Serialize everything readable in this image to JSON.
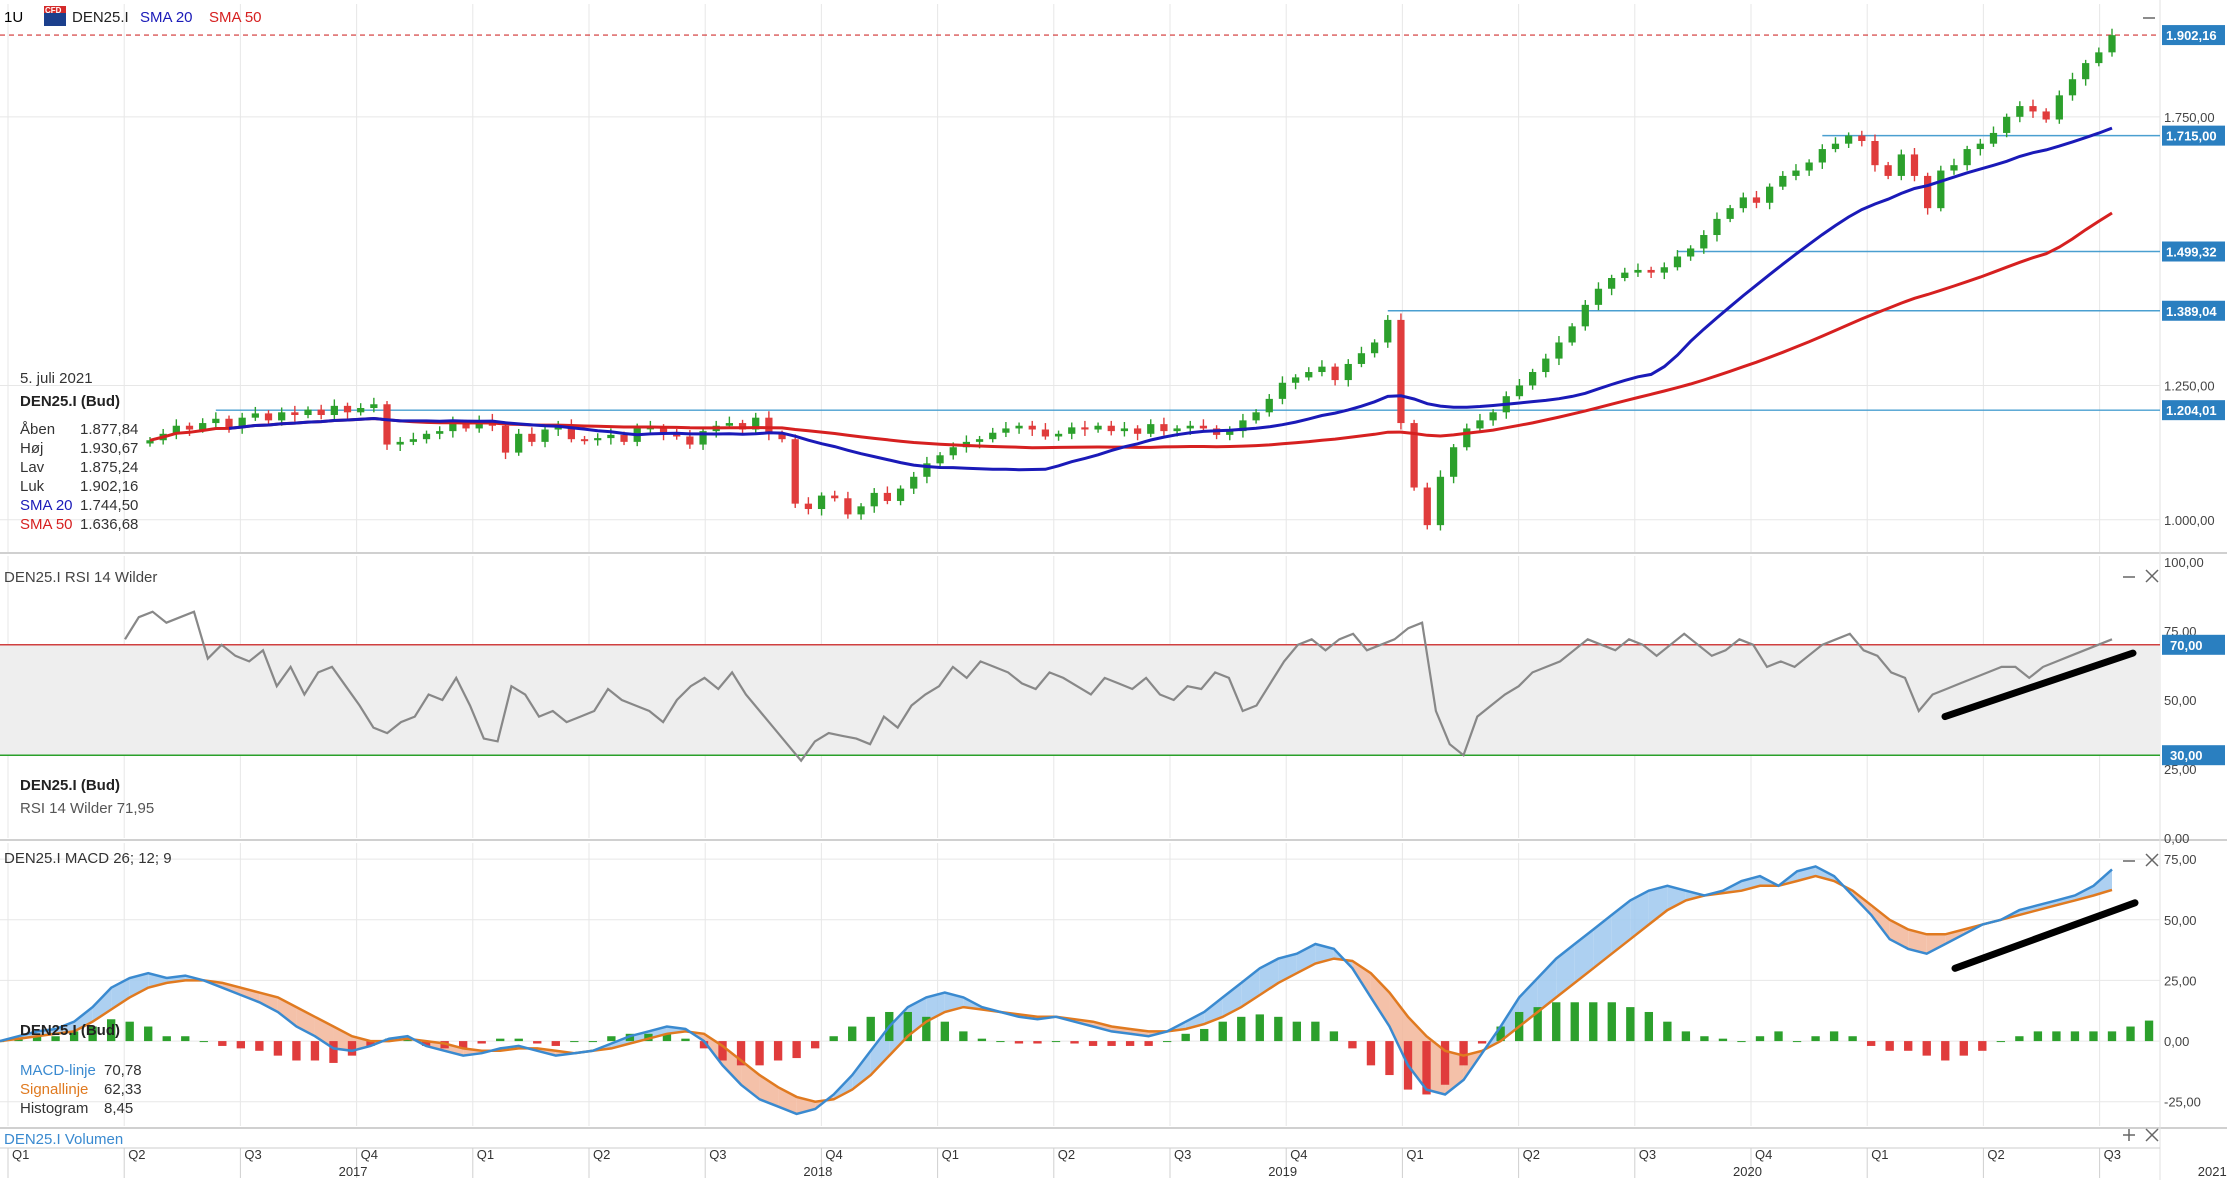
{
  "header": {
    "timeframe": "1U",
    "symbol": "DEN25.I",
    "sma20_label": "SMA 20",
    "sma50_label": "SMA 50",
    "brand_badge": "CFD"
  },
  "colors": {
    "up_candle": "#2ca02c",
    "down_candle": "#e03c3c",
    "sma20": "#1a1ab8",
    "sma50": "#d62020",
    "level_line": "#4a9fd0",
    "level_badge": "#2a7fc0",
    "last_price_line": "#d03030",
    "rsi_line": "#888888",
    "rsi_upper": "#d04040",
    "rsi_lower": "#2aa02a",
    "rsi_band": "#eeeeee",
    "macd_line": "#3a8ad0",
    "signal_line": "#e07a20",
    "macd_fill_bull": "#9fc8ee",
    "macd_fill_bear": "#f2b69a",
    "trend_line": "#000000"
  },
  "price_panel": {
    "info": {
      "date": "5. juli 2021",
      "title": "DEN25.I (Bud)",
      "rows": [
        {
          "label": "Åben",
          "value": "1.877,84"
        },
        {
          "label": "Høj",
          "value": "1.930,67"
        },
        {
          "label": "Lav",
          "value": "1.875,24"
        },
        {
          "label": "Luk",
          "value": "1.902,16"
        },
        {
          "label": "SMA 20",
          "value": "1.744,50"
        },
        {
          "label": "SMA 50",
          "value": "1.636,68"
        }
      ]
    },
    "y_ticks": [
      "1.000,00",
      "1.250,00",
      "1.750,00"
    ],
    "levels": [
      "1.902,16",
      "1.715,00",
      "1.499,32",
      "1.389,04",
      "1.204,01"
    ],
    "collapse_icon": "minus-icon"
  },
  "rsi_panel": {
    "title": "DEN25.I  RSI 14 Wilder",
    "info_title": "DEN25.I (Bud)",
    "info_line": "RSI 14 Wilder  71,95",
    "y_ticks": [
      "100,00",
      "75,00",
      "50,00",
      "25,00",
      "0,00"
    ],
    "levels": [
      "70,00",
      "30,00"
    ]
  },
  "macd_panel": {
    "title": "DEN25.I  MACD 26; 12; 9",
    "info_title": "DEN25.I (Bud)",
    "rows": [
      {
        "label": "MACD-linje",
        "value": "70,78"
      },
      {
        "label": "Signallinje",
        "value": "62,33"
      },
      {
        "label": "Histogram",
        "value": "8,45"
      }
    ],
    "y_ticks": [
      "75,00",
      "50,00",
      "25,00",
      "0,00",
      "-25,00"
    ]
  },
  "volume_panel": {
    "title": "DEN25.I  Volumen"
  },
  "x_axis": {
    "quarters": [
      "Q1",
      "Q2",
      "Q3",
      "Q4",
      "Q1",
      "Q2",
      "Q3",
      "Q4",
      "Q1",
      "Q2",
      "Q3",
      "Q4",
      "Q1",
      "Q2",
      "Q3",
      "Q4",
      "Q1",
      "Q2",
      "Q3"
    ],
    "years": [
      "2017",
      "2018",
      "2019",
      "2020",
      "2021"
    ]
  },
  "chart_data": [
    {
      "type": "candlestick",
      "title": "DEN25.I",
      "interval": "1U",
      "x_range": [
        "2016-04",
        "2021-07"
      ],
      "ylim": [
        940,
        1960
      ],
      "close_series": [
        1148,
        1160,
        1175,
        1168,
        1180,
        1188,
        1172,
        1190,
        1198,
        1185,
        1200,
        1195,
        1205,
        1195,
        1212,
        1200,
        1208,
        1215,
        1140,
        1145,
        1150,
        1160,
        1165,
        1180,
        1170,
        1185,
        1175,
        1125,
        1160,
        1145,
        1168,
        1175,
        1150,
        1148,
        1152,
        1158,
        1145,
        1170,
        1172,
        1160,
        1155,
        1140,
        1165,
        1175,
        1180,
        1168,
        1190,
        1160,
        1150,
        1030,
        1020,
        1045,
        1040,
        1010,
        1025,
        1050,
        1035,
        1058,
        1080,
        1105,
        1120,
        1135,
        1145,
        1150,
        1162,
        1170,
        1175,
        1168,
        1155,
        1160,
        1172,
        1168,
        1175,
        1165,
        1170,
        1160,
        1178,
        1165,
        1170,
        1175,
        1170,
        1158,
        1165,
        1185,
        1200,
        1225,
        1255,
        1265,
        1275,
        1285,
        1260,
        1290,
        1310,
        1330,
        1372,
        1180,
        1060,
        990,
        1080,
        1135,
        1170,
        1185,
        1200,
        1230,
        1250,
        1275,
        1300,
        1330,
        1360,
        1400,
        1430,
        1450,
        1460,
        1465,
        1460,
        1470,
        1490,
        1505,
        1530,
        1560,
        1580,
        1600,
        1590,
        1620,
        1640,
        1650,
        1665,
        1690,
        1700,
        1715,
        1705,
        1660,
        1640,
        1680,
        1640,
        1580,
        1650,
        1660,
        1690,
        1700,
        1720,
        1750,
        1770,
        1760,
        1745,
        1790,
        1820,
        1850,
        1870,
        1902
      ],
      "sma20": {
        "name": "SMA 20",
        "last": 1744.5
      },
      "sma50": {
        "name": "SMA 50",
        "last": 1636.68
      },
      "horizontal_levels": [
        1902.16,
        1715.0,
        1499.32,
        1389.04,
        1204.01
      ],
      "last": {
        "date": "5. juli 2021",
        "open": 1877.84,
        "high": 1930.67,
        "low": 1875.24,
        "close": 1902.16
      }
    },
    {
      "type": "line",
      "title": "RSI 14 Wilder",
      "ylim": [
        0,
        100
      ],
      "bands": [
        30,
        70
      ],
      "values": [
        72,
        80,
        82,
        78,
        80,
        82,
        65,
        70,
        66,
        64,
        68,
        55,
        62,
        52,
        60,
        62,
        55,
        48,
        40,
        38,
        42,
        44,
        52,
        50,
        58,
        48,
        36,
        35,
        55,
        52,
        44,
        46,
        42,
        44,
        46,
        54,
        50,
        48,
        46,
        42,
        50,
        55,
        58,
        54,
        60,
        52,
        46,
        40,
        34,
        28,
        35,
        38,
        37,
        36,
        34,
        44,
        40,
        48,
        52,
        55,
        62,
        58,
        64,
        62,
        60,
        56,
        54,
        60,
        58,
        55,
        52,
        58,
        56,
        54,
        58,
        52,
        50,
        55,
        54,
        60,
        58,
        46,
        48,
        56,
        64,
        70,
        72,
        68,
        72,
        74,
        68,
        70,
        72,
        76,
        78,
        46,
        34,
        30,
        44,
        48,
        52,
        55,
        60,
        62,
        64,
        68,
        72,
        70,
        68,
        72,
        70,
        66,
        70,
        74,
        70,
        66,
        68,
        72,
        70,
        62,
        64,
        62,
        66,
        70,
        72,
        74,
        68,
        66,
        60,
        58,
        46,
        52,
        54,
        56,
        58,
        60,
        62,
        62,
        58,
        62,
        64,
        66,
        68,
        70,
        72
      ],
      "trend_line": "rising, from RSI 44 to RSI 67"
    },
    {
      "type": "line",
      "title": "MACD 26; 12; 9",
      "ylim": [
        -35,
        80
      ],
      "series": [
        {
          "name": "MACD-linje",
          "values": [
            0,
            2,
            4,
            5,
            8,
            14,
            22,
            26,
            28,
            26,
            27,
            25,
            22,
            19,
            16,
            12,
            6,
            2,
            -3,
            -4,
            -2,
            1,
            2,
            -2,
            -4,
            -6,
            -5,
            -3,
            -2,
            -4,
            -6,
            -5,
            -4,
            -1,
            2,
            4,
            6,
            5,
            0,
            -10,
            -18,
            -24,
            -27,
            -30,
            -28,
            -22,
            -14,
            -4,
            6,
            14,
            18,
            20,
            18,
            14,
            12,
            10,
            9,
            10,
            8,
            6,
            4,
            3,
            2,
            4,
            8,
            12,
            18,
            24,
            30,
            34,
            36,
            40,
            38,
            30,
            18,
            6,
            -10,
            -20,
            -22,
            -16,
            -5,
            6,
            18,
            26,
            34,
            40,
            46,
            52,
            58,
            62,
            64,
            62,
            60,
            62,
            66,
            68,
            64,
            70,
            72,
            68,
            60,
            52,
            42,
            38,
            36,
            40,
            44,
            48,
            50,
            54,
            56,
            58,
            60,
            64,
            70.78
          ]
        },
        {
          "name": "Signallinje",
          "values": [
            0,
            1,
            2,
            3,
            4,
            8,
            13,
            18,
            22,
            24,
            25,
            25,
            24,
            22,
            20,
            18,
            14,
            10,
            6,
            2,
            0,
            0,
            1,
            0,
            -1,
            -3,
            -4,
            -4,
            -3,
            -3,
            -4,
            -5,
            -4,
            -3,
            -1,
            1,
            3,
            4,
            3,
            -2,
            -8,
            -14,
            -19,
            -23,
            -25,
            -24,
            -20,
            -14,
            -6,
            2,
            8,
            12,
            14,
            13,
            12,
            11,
            10,
            10,
            9,
            8,
            6,
            5,
            4,
            4,
            5,
            7,
            10,
            14,
            19,
            24,
            28,
            32,
            34,
            33,
            28,
            20,
            10,
            2,
            -4,
            -6,
            -4,
            0,
            6,
            12,
            18,
            24,
            30,
            36,
            42,
            48,
            54,
            58,
            60,
            61,
            62,
            64,
            64,
            66,
            68,
            66,
            62,
            56,
            50,
            46,
            44,
            44,
            46,
            48,
            50,
            52,
            54,
            56,
            58,
            60,
            62.33
          ]
        },
        {
          "name": "Histogram",
          "values": [
            0,
            1,
            2,
            2,
            4,
            6,
            9,
            8,
            6,
            2,
            2,
            0,
            -2,
            -3,
            -4,
            -6,
            -8,
            -8,
            -9,
            -6,
            -2,
            1,
            1,
            -2,
            -3,
            -3,
            -1,
            1,
            1,
            -1,
            -2,
            0,
            0,
            2,
            3,
            3,
            3,
            1,
            -3,
            -8,
            -10,
            -10,
            -8,
            -7,
            -3,
            2,
            6,
            10,
            12,
            12,
            10,
            8,
            4,
            1,
            0,
            -1,
            -1,
            0,
            -1,
            -2,
            -2,
            -2,
            -2,
            0,
            3,
            5,
            8,
            10,
            11,
            10,
            8,
            8,
            4,
            -3,
            -10,
            -14,
            -20,
            -22,
            -18,
            -10,
            -1,
            6,
            12,
            14,
            16,
            16,
            16,
            16,
            14,
            12,
            8,
            4,
            2,
            1,
            0,
            2,
            4,
            0,
            2,
            4,
            2,
            -2,
            -4,
            -4,
            -6,
            -8,
            -6,
            -4,
            0,
            2,
            4,
            4,
            4,
            4,
            4,
            6,
            8.45
          ]
        }
      ],
      "trend_line": "rising, from MACD 30 to MACD 57"
    }
  ]
}
